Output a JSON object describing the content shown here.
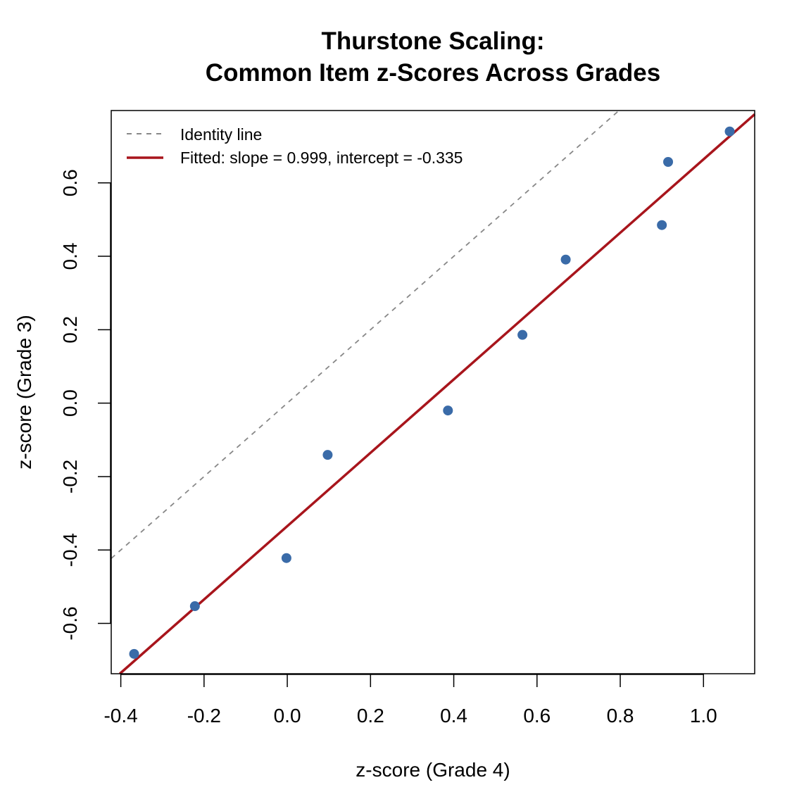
{
  "chart_data": {
    "type": "scatter",
    "title": [
      "Thurstone Scaling:",
      "Common Item z-Scores Across Grades"
    ],
    "xlabel": "z-score (Grade 4)",
    "ylabel": "z-score (Grade 3)",
    "xlim": [
      -0.423,
      1.123
    ],
    "ylim": [
      -0.737,
      0.797
    ],
    "x_ticks": [
      -0.4,
      -0.2,
      0.0,
      0.2,
      0.4,
      0.6,
      0.8,
      1.0
    ],
    "x_tick_labels": [
      "-0.4",
      "-0.2",
      "0.0",
      "0.2",
      "0.4",
      "0.6",
      "0.8",
      "1.0"
    ],
    "y_ticks": [
      -0.6,
      -0.4,
      -0.2,
      0.0,
      0.2,
      0.4,
      0.6
    ],
    "y_tick_labels": [
      "-0.6",
      "-0.4",
      "-0.2",
      "0.0",
      "0.2",
      "0.4",
      "0.6"
    ],
    "grid": false,
    "legend_position": "top-left",
    "points": {
      "x": [
        -0.368,
        -0.222,
        -0.002,
        0.097,
        0.386,
        0.565,
        0.669,
        0.9,
        0.915,
        1.063
      ],
      "y": [
        -0.683,
        -0.553,
        -0.422,
        -0.141,
        -0.02,
        0.186,
        0.391,
        0.485,
        0.657,
        0.74
      ],
      "color": "#3A6BA8"
    },
    "lines": [
      {
        "name": "Identity line",
        "slope": 1.0,
        "intercept": 0.0,
        "color": "#888888",
        "style": "dashed"
      },
      {
        "name": "Fitted: slope = 0.999, intercept = -0.335",
        "slope": 0.999,
        "intercept": -0.335,
        "color": "#A8151C",
        "style": "solid"
      }
    ]
  }
}
